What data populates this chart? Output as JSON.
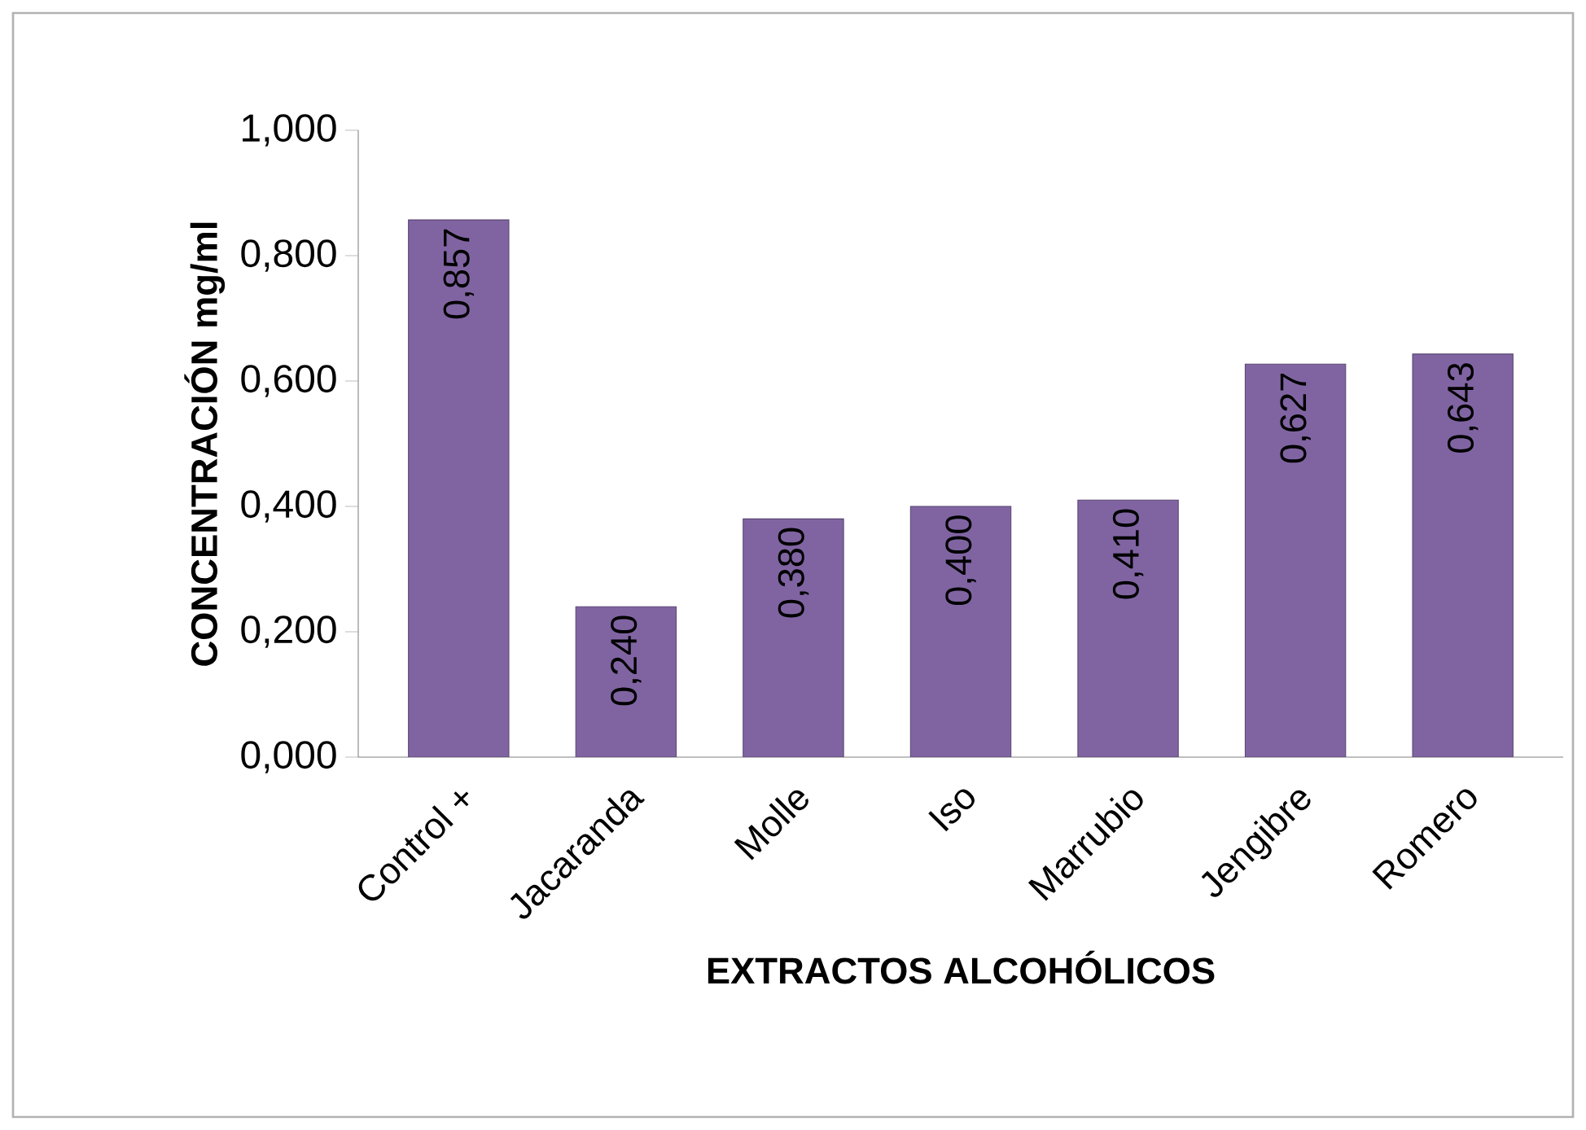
{
  "chart_data": {
    "type": "bar",
    "xlabel": "EXTRACTOS ALCOHÓLICOS",
    "ylabel": "CONCENTRACIÓN mg/ml",
    "categories": [
      "Control +",
      "Jacaranda",
      "Molle",
      "Iso",
      "Marrubio",
      "Jengibre",
      "Romero"
    ],
    "values": [
      0.857,
      0.24,
      0.38,
      0.4,
      0.41,
      0.627,
      0.643
    ],
    "value_labels": [
      "0,857",
      "0,240",
      "0,380",
      "0,400",
      "0,410",
      "0,627",
      "0,643"
    ],
    "color": "#8064a2",
    "ylim": [
      0,
      1
    ],
    "yticks": [
      {
        "value": 0,
        "label": "0,000"
      },
      {
        "value": 0.2,
        "label": "0,200"
      },
      {
        "value": 0.4,
        "label": "0,400"
      },
      {
        "value": 0.6,
        "label": "0,600"
      },
      {
        "value": 0.8,
        "label": "0,800"
      },
      {
        "value": 1,
        "label": "1,000"
      }
    ],
    "stacked": false
  }
}
